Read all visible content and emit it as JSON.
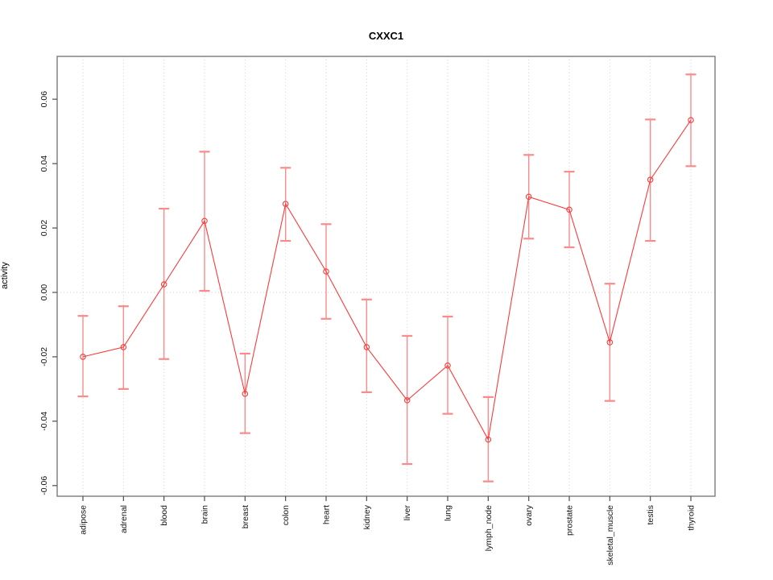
{
  "chart_data": {
    "type": "line",
    "title": "CXXC1",
    "xlabel": "",
    "ylabel": "activity",
    "legend": "none",
    "grid": "vertical dotted gridline at each category; horizontal dotted line at y=0",
    "categories": [
      "adipose",
      "adrenal",
      "blood",
      "brain",
      "breast",
      "colon",
      "heart",
      "kidney",
      "liver",
      "lung",
      "lymph_node",
      "ovary",
      "prostate",
      "skeletal_muscle",
      "testis",
      "thyroid"
    ],
    "series": [
      {
        "name": "activity",
        "values": [
          -0.02,
          -0.017,
          0.0025,
          0.0222,
          -0.0315,
          0.0275,
          0.0065,
          -0.017,
          -0.0335,
          -0.0227,
          -0.0457,
          0.0297,
          0.0257,
          -0.0155,
          0.035,
          0.0535
        ],
        "error_upper": [
          -0.0073,
          -0.0043,
          0.026,
          0.0437,
          -0.019,
          0.0387,
          0.0212,
          -0.0022,
          -0.0135,
          -0.0075,
          -0.0325,
          0.0427,
          0.0375,
          0.0027,
          0.0537,
          0.0677
        ],
        "error_lower": [
          -0.0323,
          -0.03,
          -0.0207,
          0.0005,
          -0.0437,
          0.016,
          -0.0082,
          -0.031,
          -0.0533,
          -0.0377,
          -0.0587,
          0.0167,
          0.014,
          -0.0337,
          0.016,
          0.0392
        ]
      }
    ],
    "yticks": [
      -0.06,
      -0.04,
      -0.02,
      0.0,
      0.02,
      0.04,
      0.06
    ],
    "ytick_labels": [
      "-0.06",
      "-0.04",
      "-0.02",
      "0.00",
      "0.02",
      "0.04",
      "0.06"
    ],
    "ylim": [
      -0.0633,
      0.0733
    ],
    "colors": {
      "series": "#f93b3b",
      "error_bar": "#fb8a8a",
      "grid": "#d2d2d2",
      "box": "#7b7b7b",
      "text": "#111111"
    }
  }
}
